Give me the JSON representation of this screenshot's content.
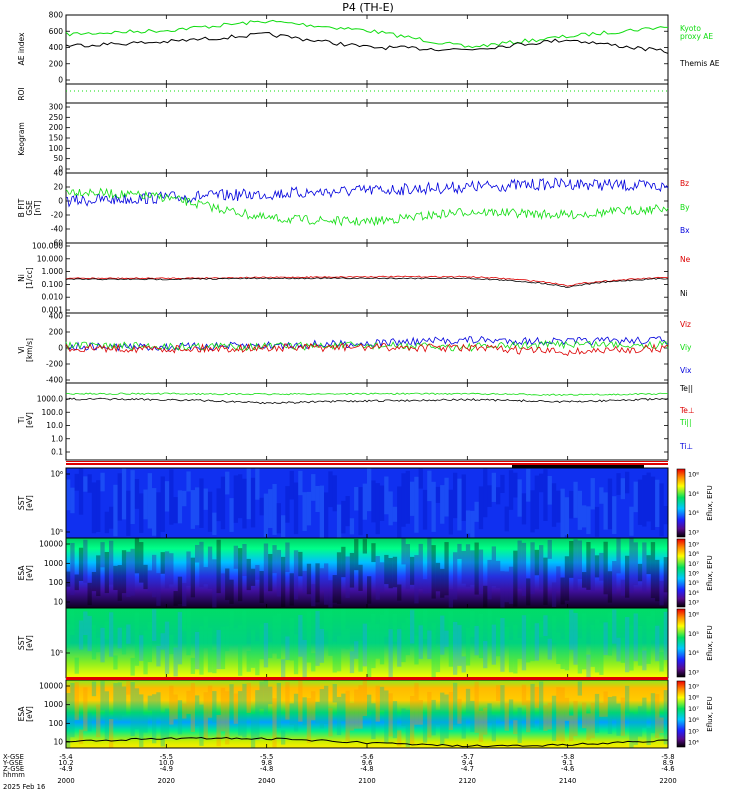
{
  "title": "P4 (TH-E)",
  "colors": {
    "black": "#000000",
    "green": "#11dd11",
    "red": "#dd0000",
    "blue": "#0000dd",
    "bg": "#ffffff"
  },
  "panels": {
    "ae": {
      "ylabel": "AE index",
      "ticks": [
        "800",
        "600",
        "400",
        "200",
        "0"
      ],
      "legend": [
        "Kyoto",
        "proxy AE",
        "Themis AE"
      ]
    },
    "roi": {
      "ylabel": "ROI"
    },
    "keogram": {
      "ylabel": "Keogram",
      "ticks": [
        "300",
        "250",
        "200",
        "150",
        "100",
        "50",
        "0"
      ]
    },
    "bfield": {
      "ylabel": [
        "B FIT",
        "GSE",
        "[nT]"
      ],
      "ticks": [
        "40",
        "20",
        "0",
        "-20",
        "-40",
        "-60"
      ],
      "legend": [
        "Bz",
        "By",
        "Bx"
      ]
    },
    "density": {
      "ylabel": [
        "Ni",
        "[1/cc]"
      ],
      "ticks": [
        "100.000",
        "10.000",
        "1.000",
        "0.100",
        "0.010",
        "0.001"
      ],
      "legend": [
        "Ne",
        "Ni"
      ]
    },
    "velocity": {
      "ylabel": [
        "Vi",
        "[km/s]"
      ],
      "ticks": [
        "400",
        "200",
        "0",
        "-200",
        "-400"
      ],
      "legend": [
        "Viz",
        "Viy",
        "Vix"
      ]
    },
    "temp": {
      "ylabel": [
        "Ti",
        "[eV]"
      ],
      "ticks": [
        "1000.0",
        "100.0",
        "10.0",
        "1.0",
        "0.1"
      ],
      "legend": [
        "Te||",
        "Te⊥",
        "Ti||",
        "Ti⊥"
      ]
    },
    "sst_e": {
      "ylabel": [
        "SST",
        "[eV]"
      ],
      "ticks": [
        "10⁶",
        "10⁵"
      ],
      "cb_label": "Eflux, EFU",
      "cb_ticks": [
        "10⁸",
        "10⁴",
        "10⁴",
        "10³"
      ]
    },
    "esa_e": {
      "ylabel": [
        "ESA",
        "[eV]"
      ],
      "ticks": [
        "10000",
        "1000",
        "100",
        "10"
      ],
      "cb_label": "Eflux, EFU",
      "cb_ticks": [
        "10⁹",
        "10⁸",
        "10⁷",
        "10⁶",
        "10⁵",
        "10⁴",
        "10³"
      ]
    },
    "sst_i": {
      "ylabel": [
        "SST",
        "[eV]"
      ],
      "ticks": [
        "10⁵"
      ],
      "cb_label": "Eflux, EFU",
      "cb_ticks": [
        "10⁸",
        "10⁵",
        "10⁴",
        "10³"
      ]
    },
    "esa_i": {
      "ylabel": [
        "ESA",
        "[eV]"
      ],
      "ticks": [
        "10000",
        "1000",
        "100",
        "10"
      ],
      "cb_label": "Eflux, EFU",
      "cb_ticks": [
        "10⁹",
        "10⁸",
        "10⁷",
        "10⁶",
        "10⁵",
        "10⁴"
      ]
    }
  },
  "footer": {
    "row_labels": [
      "X-GSE",
      "Y-GSE",
      "Z-GSE",
      "hhmm",
      "2025 Feb 16"
    ],
    "columns": [
      {
        "x": "-5.4",
        "y": "10.2",
        "z": "-4.9",
        "t": "2000"
      },
      {
        "x": "-5.5",
        "y": "10.0",
        "z": "-4.9",
        "t": "2020"
      },
      {
        "x": "-5.5",
        "y": "9.8",
        "z": "-4.8",
        "t": "2040"
      },
      {
        "x": "-5.6",
        "y": "9.6",
        "z": "-4.8",
        "t": "2100"
      },
      {
        "x": "-5.7",
        "y": "9.4",
        "z": "-4.7",
        "t": "2120"
      },
      {
        "x": "-5.8",
        "y": "9.1",
        "z": "-4.6",
        "t": "2140"
      },
      {
        "x": "-5.8",
        "y": "8.9",
        "z": "-4.6",
        "t": "2200"
      }
    ]
  },
  "chart_data": [
    {
      "type": "line",
      "x": [
        "2000",
        "2020",
        "2040",
        "2100",
        "2120",
        "2140",
        "2200"
      ],
      "series": [
        {
          "name": "Kyoto proxy AE",
          "values": [
            550,
            600,
            720,
            600,
            380,
            520,
            650
          ]
        },
        {
          "name": "Themis AE",
          "values": [
            400,
            450,
            550,
            380,
            350,
            480,
            320
          ]
        }
      ],
      "ylim": [
        -100,
        800
      ],
      "ylabel": "AE index"
    },
    {
      "type": "line",
      "x": [
        "2000",
        "2020",
        "2040",
        "2100",
        "2120",
        "2140",
        "2200"
      ],
      "series": [
        {
          "name": "By",
          "values": [
            15,
            5,
            -25,
            -30,
            -15,
            -20,
            -10
          ]
        },
        {
          "name": "Bx",
          "values": [
            0,
            5,
            10,
            15,
            20,
            25,
            20
          ]
        }
      ],
      "ylim": [
        -60,
        40
      ],
      "ylabel": "B FIT GSE [nT]"
    },
    {
      "type": "line",
      "x": [
        "2000",
        "2020",
        "2040",
        "2100",
        "2120",
        "2140",
        "2200"
      ],
      "series": [
        {
          "name": "Ne",
          "values": [
            0.3,
            0.3,
            0.35,
            0.4,
            0.4,
            0.08,
            0.35
          ]
        },
        {
          "name": "Ni",
          "values": [
            0.25,
            0.25,
            0.3,
            0.3,
            0.3,
            0.06,
            0.3
          ]
        }
      ],
      "ylim": [
        0.001,
        100
      ],
      "ylabel": "Ni [1/cc]"
    },
    {
      "type": "line",
      "x": [
        "2000",
        "2020",
        "2040",
        "2100",
        "2120",
        "2140",
        "2200"
      ],
      "series": [
        {
          "name": "Viz",
          "values": [
            0,
            -10,
            0,
            10,
            0,
            -50,
            0
          ]
        },
        {
          "name": "Viy",
          "values": [
            30,
            20,
            20,
            30,
            10,
            50,
            40
          ]
        },
        {
          "name": "Vix",
          "values": [
            20,
            10,
            30,
            60,
            100,
            80,
            100
          ]
        }
      ],
      "ylim": [
        -400,
        400
      ],
      "ylabel": "Vi [km/s]"
    },
    {
      "type": "line",
      "x": [
        "2000",
        "2020",
        "2040",
        "2100",
        "2120",
        "2140",
        "2200"
      ],
      "series": [
        {
          "name": "Ti||",
          "values": [
            2500,
            2500,
            2300,
            2500,
            2500,
            2000,
            2500
          ]
        },
        {
          "name": "Te||",
          "values": [
            1000,
            900,
            500,
            700,
            900,
            600,
            1000
          ]
        }
      ],
      "ylim": [
        0.05,
        10000
      ],
      "ylabel": "Ti [eV]"
    }
  ]
}
